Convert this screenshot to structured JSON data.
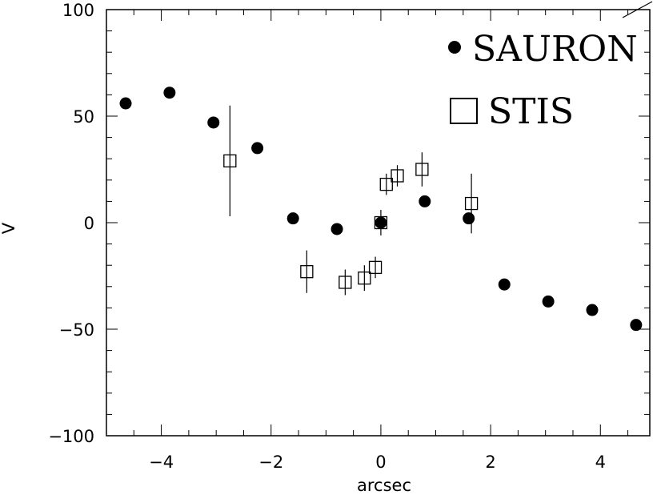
{
  "chart_data": {
    "type": "scatter",
    "title": "",
    "xlabel": "arcsec",
    "ylabel": "V",
    "xlim": [
      -5.0,
      4.9
    ],
    "ylim": [
      -100,
      100
    ],
    "x_ticks": [
      -4,
      -2,
      0,
      2,
      4
    ],
    "x_tick_labels": [
      "−4",
      "−2",
      "0",
      "2",
      "4"
    ],
    "y_ticks": [
      -100,
      -50,
      0,
      50,
      100
    ],
    "y_tick_labels": [
      "−100",
      "−50",
      "0",
      "50",
      "100"
    ],
    "grid": false,
    "legend_position": "top-right",
    "series": [
      {
        "name": "SAURON",
        "marker": "filled-circle",
        "color": "#000000",
        "points": [
          {
            "x": -4.65,
            "y": 56
          },
          {
            "x": -3.85,
            "y": 61
          },
          {
            "x": -3.05,
            "y": 47
          },
          {
            "x": -2.25,
            "y": 35
          },
          {
            "x": -1.6,
            "y": 2
          },
          {
            "x": -0.8,
            "y": -3
          },
          {
            "x": 0.0,
            "y": 0
          },
          {
            "x": 0.8,
            "y": 10
          },
          {
            "x": 1.6,
            "y": 2
          },
          {
            "x": 2.25,
            "y": -29
          },
          {
            "x": 3.05,
            "y": -37
          },
          {
            "x": 3.85,
            "y": -41
          },
          {
            "x": 4.65,
            "y": -48
          }
        ]
      },
      {
        "name": "STIS",
        "marker": "open-square",
        "color": "#000000",
        "points": [
          {
            "x": -2.75,
            "y": 29,
            "err": 26
          },
          {
            "x": -1.35,
            "y": -23,
            "err": 10
          },
          {
            "x": -0.65,
            "y": -28,
            "err": 6
          },
          {
            "x": -0.3,
            "y": -26,
            "err": 6
          },
          {
            "x": -0.1,
            "y": -21,
            "err": 5
          },
          {
            "x": 0.0,
            "y": 0,
            "err": 6
          },
          {
            "x": 0.1,
            "y": 18,
            "err": 5
          },
          {
            "x": 0.3,
            "y": 22,
            "err": 5
          },
          {
            "x": 0.75,
            "y": 25,
            "err": 8
          },
          {
            "x": 1.65,
            "y": 9,
            "err": 14
          }
        ]
      }
    ]
  }
}
